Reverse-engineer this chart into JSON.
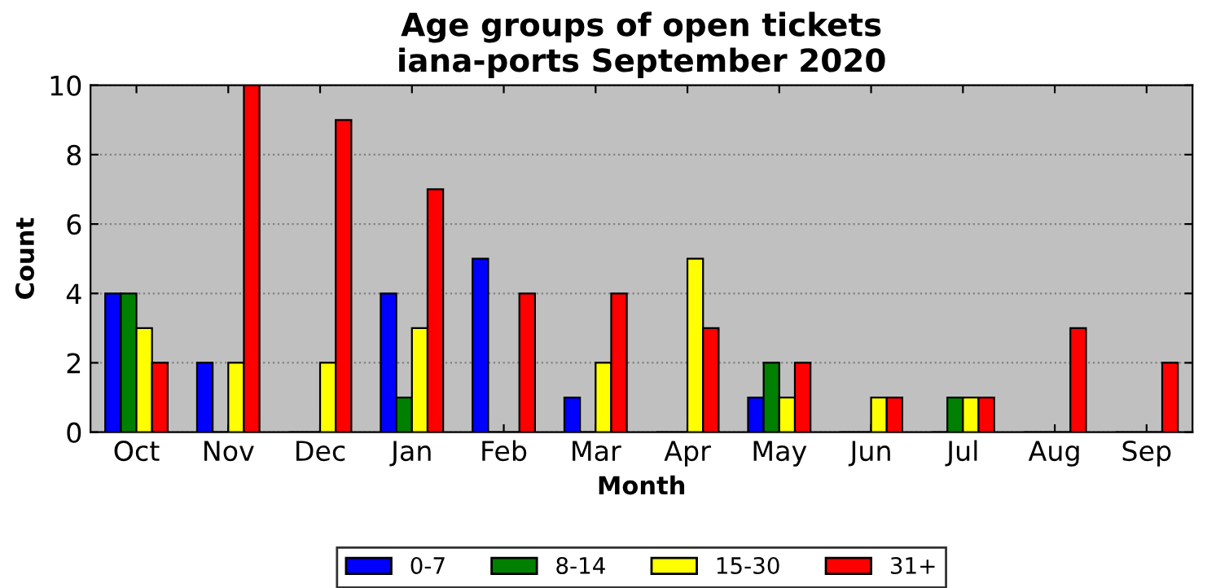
{
  "chart_data": {
    "type": "bar",
    "title": "Age groups of open tickets\niana-ports September 2020",
    "xlabel": "Month",
    "ylabel": "Count",
    "categories": [
      "Oct",
      "Nov",
      "Dec",
      "Jan",
      "Feb",
      "Mar",
      "Apr",
      "May",
      "Jun",
      "Jul",
      "Aug",
      "Sep"
    ],
    "series": [
      {
        "name": "0-7",
        "color": "#0000ff",
        "values": [
          4,
          2,
          0,
          4,
          5,
          1,
          0,
          1,
          0,
          0,
          0,
          0
        ]
      },
      {
        "name": "8-14",
        "color": "#008000",
        "values": [
          4,
          0,
          0,
          1,
          0,
          0,
          0,
          2,
          0,
          1,
          0,
          0
        ]
      },
      {
        "name": "15-30",
        "color": "#ffff00",
        "values": [
          3,
          2,
          2,
          3,
          0,
          2,
          5,
          1,
          1,
          1,
          0,
          0
        ]
      },
      {
        "name": "31+",
        "color": "#ff0000",
        "values": [
          2,
          10,
          9,
          7,
          4,
          4,
          3,
          2,
          1,
          1,
          3,
          2
        ]
      }
    ],
    "ylim": [
      0,
      10
    ],
    "yticks": [
      0,
      2,
      4,
      6,
      8,
      10
    ],
    "grid": "y",
    "legend": "bottom"
  }
}
